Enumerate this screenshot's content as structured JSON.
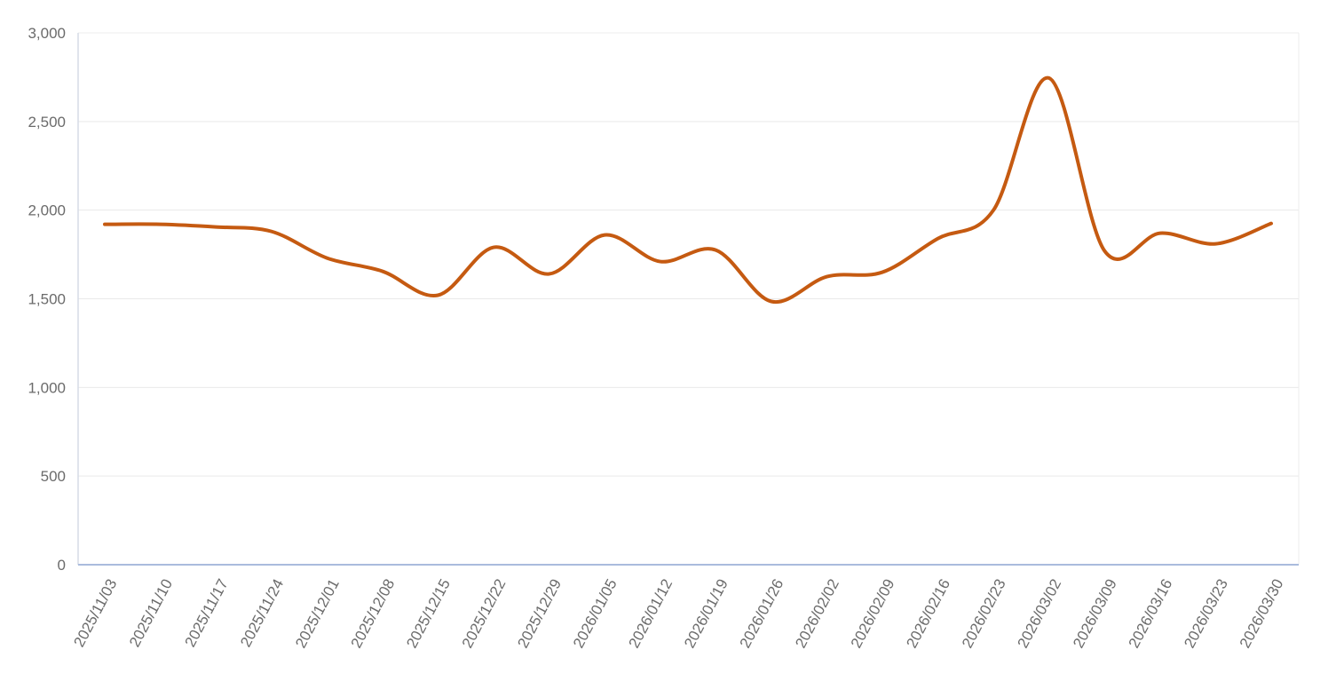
{
  "chart_data": {
    "type": "line",
    "title": "",
    "xlabel": "",
    "ylabel": "",
    "ylim": [
      0,
      3000
    ],
    "yticks": [
      0,
      500,
      1000,
      1500,
      2000,
      2500,
      3000
    ],
    "ytick_labels": [
      "0",
      "500",
      "1,000",
      "1,500",
      "2,000",
      "2,500",
      "3,000"
    ],
    "grid": true,
    "legend": "none",
    "smooth": true,
    "categories": [
      "2025/11/03",
      "2025/11/10",
      "2025/11/17",
      "2025/11/24",
      "2025/12/01",
      "2025/12/08",
      "2025/12/15",
      "2025/12/22",
      "2025/12/29",
      "2026/01/05",
      "2026/01/12",
      "2026/01/19",
      "2026/01/26",
      "2026/02/02",
      "2026/02/09",
      "2026/02/16",
      "2026/02/23",
      "2026/03/02",
      "2026/03/09",
      "2026/03/16",
      "2026/03/23",
      "2026/03/30"
    ],
    "series": [
      {
        "color": "#c55a11",
        "values": [
          1920,
          1920,
          1905,
          1880,
          1730,
          1655,
          1520,
          1790,
          1640,
          1860,
          1710,
          1775,
          1485,
          1625,
          1650,
          1840,
          2000,
          2745,
          1770,
          1870,
          1810,
          1925
        ]
      }
    ],
    "colors": {
      "axis": "#aabbdd",
      "grid": "#e9e9e9",
      "tick_text": "#6b6b6b"
    }
  }
}
